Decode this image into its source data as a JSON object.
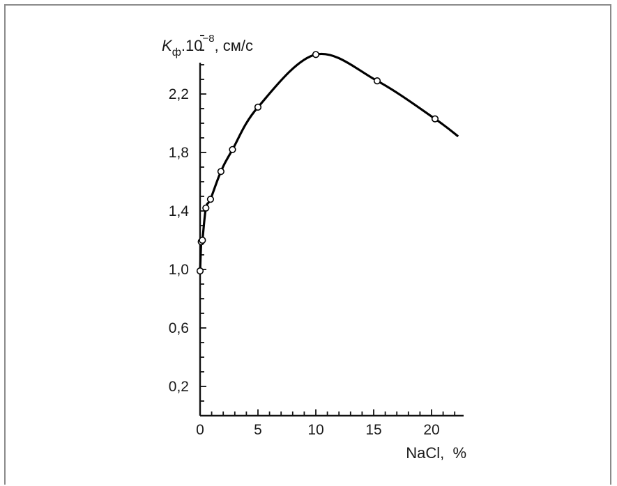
{
  "chart_data": {
    "type": "line",
    "ylabel": {
      "symbol": "K",
      "subscript": "ф",
      "multiplier": ".10",
      "exponent": "−8",
      "unit": ", см/с"
    },
    "xlabel": "NaCl,  %",
    "xlim": [
      0,
      22.5
    ],
    "ylim": [
      0,
      2.7
    ],
    "x_ticks": [
      0,
      5,
      10,
      15,
      20
    ],
    "x_tick_labels": [
      "0",
      "5",
      "10",
      "15",
      "20"
    ],
    "y_ticks": [
      0.2,
      0.6,
      1.0,
      1.4,
      1.8,
      2.2
    ],
    "y_tick_labels": [
      "0,2",
      "0,6",
      "1,0",
      "1,4",
      "1,8",
      "2,2"
    ],
    "grid": false,
    "series": [
      {
        "points": [
          [
            0,
            0.99
          ],
          [
            0.1,
            1.19
          ],
          [
            0.2,
            1.2
          ],
          [
            0.5,
            1.42
          ],
          [
            0.9,
            1.48
          ],
          [
            1.8,
            1.67
          ],
          [
            2.8,
            1.82
          ],
          [
            5.0,
            2.11
          ],
          [
            10.0,
            2.47
          ],
          [
            15.3,
            2.29
          ],
          [
            20.3,
            2.03
          ]
        ],
        "curve_end": [
          22.3,
          1.91
        ]
      }
    ],
    "line_color": "#000000",
    "marker": "open-circle"
  }
}
